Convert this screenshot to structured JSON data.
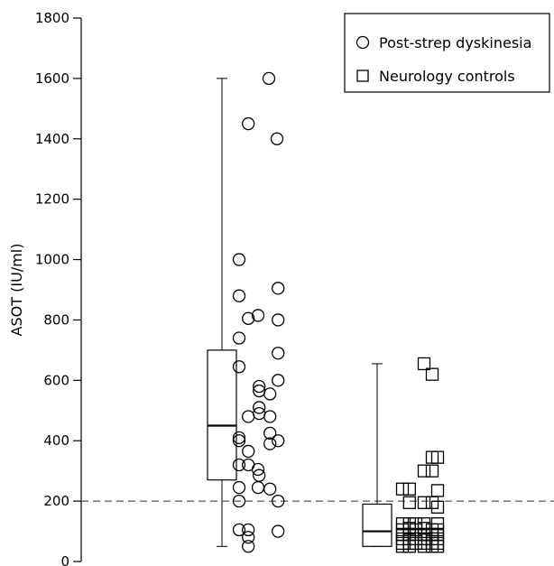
{
  "chart_data": {
    "type": "scatter",
    "ylabel": "ASOT (IU/ml)",
    "ylim": [
      0,
      1800
    ],
    "yticks": [
      0,
      200,
      400,
      600,
      800,
      1000,
      1200,
      1400,
      1600,
      1800
    ],
    "reference_line": {
      "y": 200,
      "style": "dashed"
    },
    "legend": {
      "position": "top-right"
    },
    "series": [
      {
        "name": "Post-strep dyskinesia",
        "marker": "circle",
        "box": {
          "whisker_low": 50,
          "q1": 270,
          "median": 450,
          "q3": 700,
          "whisker_high": 1600
        },
        "points": [
          {
            "x": 0,
            "y": 1600
          },
          {
            "x": -0.38,
            "y": 1450
          },
          {
            "x": 0.15,
            "y": 1400
          },
          {
            "x": -0.55,
            "y": 1000
          },
          {
            "x": -0.55,
            "y": 880
          },
          {
            "x": 0.17,
            "y": 905
          },
          {
            "x": -0.38,
            "y": 805
          },
          {
            "x": -0.2,
            "y": 815
          },
          {
            "x": 0.17,
            "y": 800
          },
          {
            "x": -0.55,
            "y": 740
          },
          {
            "x": 0.17,
            "y": 690
          },
          {
            "x": -0.55,
            "y": 645
          },
          {
            "x": 0.17,
            "y": 600
          },
          {
            "x": -0.18,
            "y": 580
          },
          {
            "x": -0.18,
            "y": 565
          },
          {
            "x": 0.02,
            "y": 555
          },
          {
            "x": -0.18,
            "y": 510
          },
          {
            "x": -0.18,
            "y": 490
          },
          {
            "x": -0.38,
            "y": 480
          },
          {
            "x": 0.02,
            "y": 480
          },
          {
            "x": 0.02,
            "y": 425
          },
          {
            "x": -0.55,
            "y": 410
          },
          {
            "x": -0.55,
            "y": 400
          },
          {
            "x": 0.17,
            "y": 400
          },
          {
            "x": 0.02,
            "y": 390
          },
          {
            "x": -0.38,
            "y": 365
          },
          {
            "x": -0.55,
            "y": 320
          },
          {
            "x": -0.38,
            "y": 320
          },
          {
            "x": -0.2,
            "y": 305
          },
          {
            "x": -0.18,
            "y": 285
          },
          {
            "x": -0.55,
            "y": 245
          },
          {
            "x": -0.2,
            "y": 245
          },
          {
            "x": 0.02,
            "y": 240
          },
          {
            "x": -0.55,
            "y": 200
          },
          {
            "x": 0.17,
            "y": 200
          },
          {
            "x": -0.55,
            "y": 105
          },
          {
            "x": -0.38,
            "y": 105
          },
          {
            "x": 0.17,
            "y": 100
          },
          {
            "x": -0.38,
            "y": 80
          },
          {
            "x": -0.38,
            "y": 50
          }
        ]
      },
      {
        "name": "Neurology controls",
        "marker": "square",
        "box": {
          "whisker_low": 50,
          "q1": 50,
          "median": 100,
          "q3": 190,
          "whisker_high": 655
        },
        "points": [
          {
            "x": 0.05,
            "y": 655
          },
          {
            "x": 0.2,
            "y": 620
          },
          {
            "x": 0.3,
            "y": 345
          },
          {
            "x": 0.2,
            "y": 345
          },
          {
            "x": 0.05,
            "y": 300
          },
          {
            "x": 0.2,
            "y": 300
          },
          {
            "x": -0.35,
            "y": 240
          },
          {
            "x": -0.22,
            "y": 240
          },
          {
            "x": 0.3,
            "y": 235
          },
          {
            "x": -0.22,
            "y": 195
          },
          {
            "x": 0.05,
            "y": 195
          },
          {
            "x": 0.2,
            "y": 195
          },
          {
            "x": 0.3,
            "y": 180
          },
          {
            "x": -0.35,
            "y": 125
          },
          {
            "x": -0.22,
            "y": 125
          },
          {
            "x": -0.1,
            "y": 125
          },
          {
            "x": 0.05,
            "y": 125
          },
          {
            "x": 0.3,
            "y": 125
          },
          {
            "x": -0.35,
            "y": 105
          },
          {
            "x": -0.22,
            "y": 110
          },
          {
            "x": -0.1,
            "y": 105
          },
          {
            "x": 0.05,
            "y": 110
          },
          {
            "x": 0.2,
            "y": 105
          },
          {
            "x": 0.3,
            "y": 105
          },
          {
            "x": -0.35,
            "y": 90
          },
          {
            "x": -0.22,
            "y": 90
          },
          {
            "x": -0.1,
            "y": 90
          },
          {
            "x": 0.05,
            "y": 90
          },
          {
            "x": 0.2,
            "y": 90
          },
          {
            "x": 0.3,
            "y": 90
          },
          {
            "x": -0.35,
            "y": 75
          },
          {
            "x": -0.22,
            "y": 75
          },
          {
            "x": -0.1,
            "y": 75
          },
          {
            "x": 0.05,
            "y": 75
          },
          {
            "x": 0.2,
            "y": 75
          },
          {
            "x": 0.3,
            "y": 75
          },
          {
            "x": -0.35,
            "y": 60
          },
          {
            "x": -0.22,
            "y": 60
          },
          {
            "x": -0.1,
            "y": 60
          },
          {
            "x": 0.05,
            "y": 60
          },
          {
            "x": 0.2,
            "y": 60
          },
          {
            "x": 0.3,
            "y": 60
          },
          {
            "x": -0.35,
            "y": 50
          },
          {
            "x": -0.22,
            "y": 50
          },
          {
            "x": 0.05,
            "y": 50
          },
          {
            "x": 0.2,
            "y": 50
          },
          {
            "x": 0.3,
            "y": 50
          }
        ]
      }
    ]
  }
}
